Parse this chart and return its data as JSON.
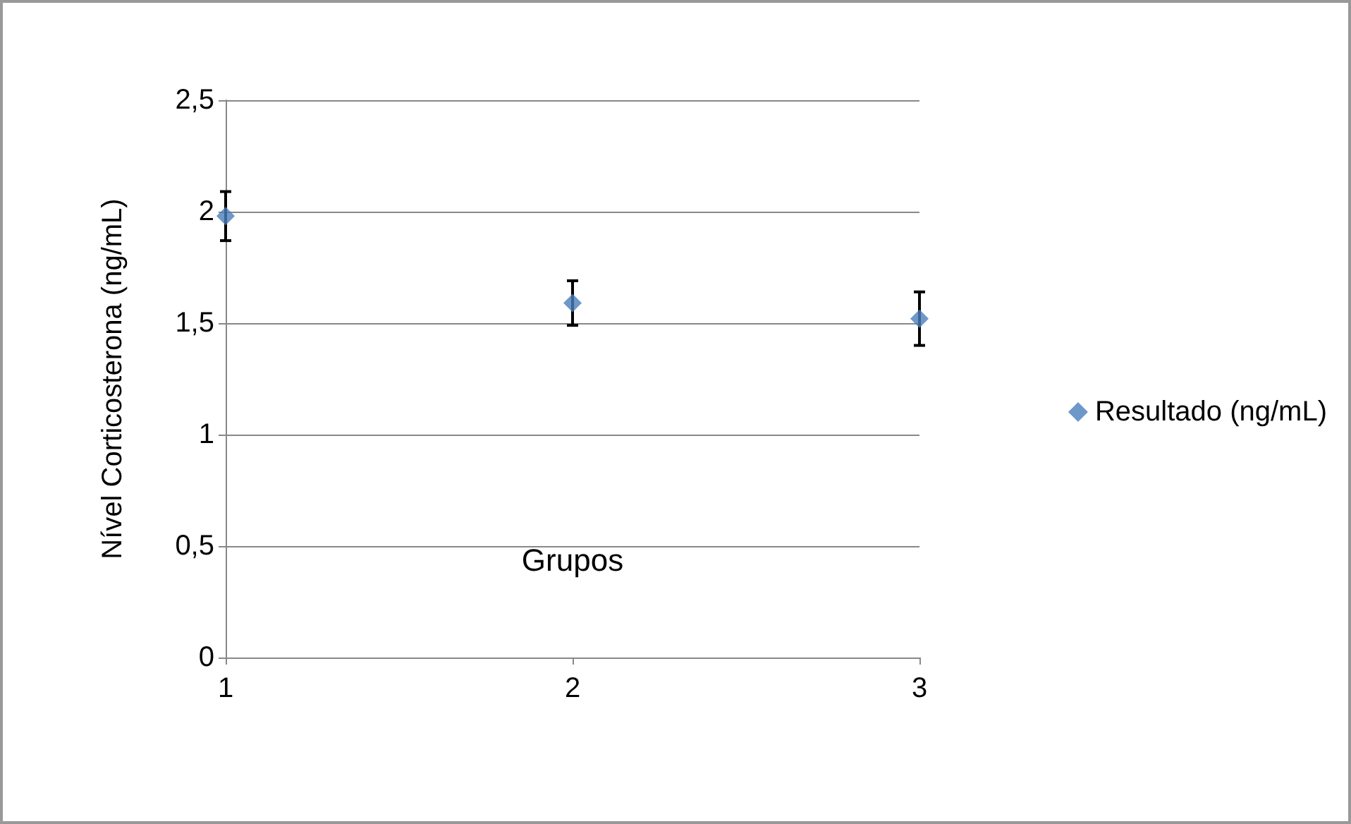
{
  "chart_data": {
    "type": "scatter",
    "xlabel": "Grupos",
    "ylabel": "Nível Corticosterona (ng/mL)",
    "x": [
      1,
      2,
      3
    ],
    "series": [
      {
        "name": "Resultado (ng/mL)",
        "color": "#4a7ebb",
        "values": [
          1.98,
          1.59,
          1.52
        ],
        "errors": [
          0.11,
          0.1,
          0.12
        ]
      }
    ],
    "xlim": [
      1,
      3
    ],
    "xticks": [
      1,
      2,
      3
    ],
    "ylim": [
      0,
      2.5
    ],
    "yticks": [
      {
        "value": 0,
        "label": "0"
      },
      {
        "value": 0.5,
        "label": "0,5"
      },
      {
        "value": 1,
        "label": "1"
      },
      {
        "value": 1.5,
        "label": "1,5"
      },
      {
        "value": 2,
        "label": "2"
      },
      {
        "value": 2.5,
        "label": "2,5"
      }
    ],
    "grid": "y",
    "legend": "right",
    "marker": "diamond"
  }
}
